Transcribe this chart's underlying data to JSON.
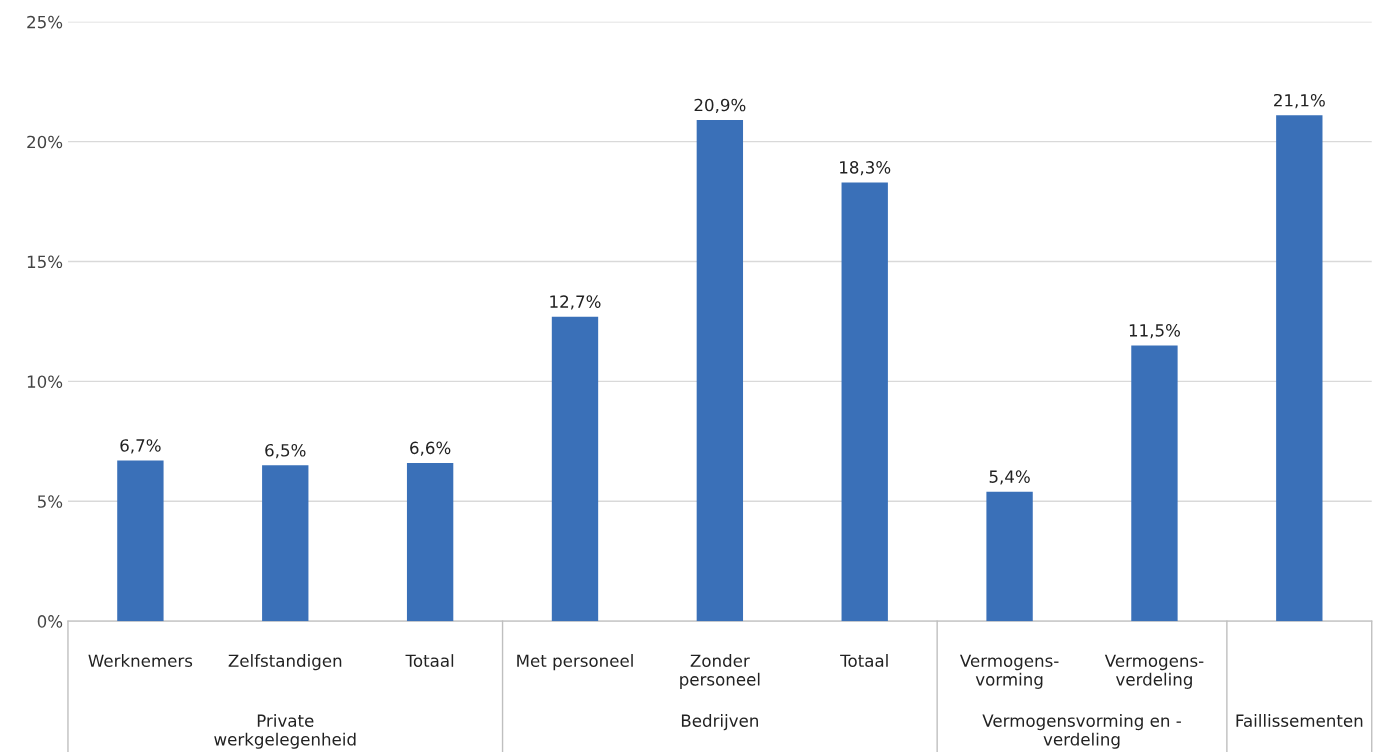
{
  "chart_data": {
    "type": "bar",
    "categories": [
      "Werknemers",
      "Zelfstandigen",
      "Totaal",
      "Met personeel",
      "Zonder\npersoneel",
      "Totaal",
      "Vermogens-\nvorming",
      "Vermogens-\nverdeling",
      null
    ],
    "values": [
      6.7,
      6.5,
      6.6,
      12.7,
      20.9,
      18.3,
      5.4,
      11.5,
      21.1
    ],
    "value_labels": [
      "6,7%",
      "6,5%",
      "6,6%",
      "12,7%",
      "20,9%",
      "18,3%",
      "5,4%",
      "11,5%",
      "21,1%"
    ],
    "color": "#3a70b8",
    "ylim": [
      0,
      25
    ],
    "yticks": [
      {
        "value": 0,
        "label": "0%"
      },
      {
        "value": 5,
        "label": "5%"
      },
      {
        "value": 10,
        "label": "10%"
      },
      {
        "value": 15,
        "label": "15%"
      },
      {
        "value": 20,
        "label": "20%"
      },
      {
        "value": 25,
        "label": "25%"
      }
    ],
    "grid": "y",
    "annotations": [
      "Private\nwerkgelegenheid",
      "Bedrijven",
      "Vermogensvorming en -\nverdeling",
      "Faillissementen"
    ]
  }
}
